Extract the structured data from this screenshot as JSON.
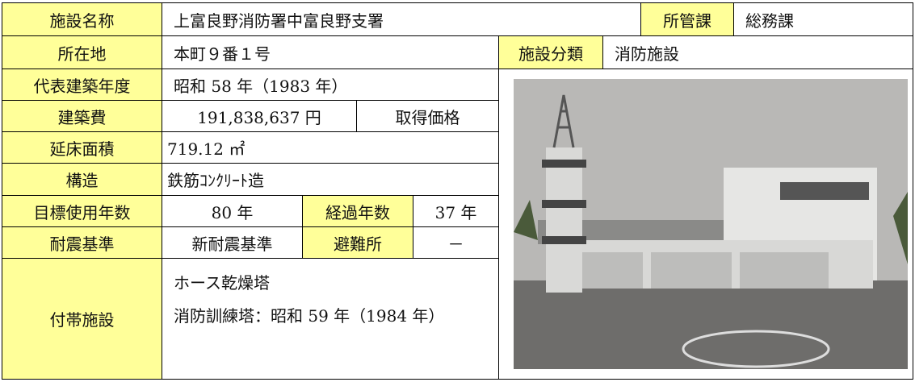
{
  "facility_name": {
    "label": "施設名称",
    "value": "上富良野消防署中富良野支署"
  },
  "department": {
    "label": "所管課",
    "value": "総務課"
  },
  "location": {
    "label": "所在地",
    "value": "本町９番１号"
  },
  "category": {
    "label": "施設分類",
    "value": "消防施設"
  },
  "built_year": {
    "label": "代表建築年度",
    "value": "昭和 58 年（1983 年）"
  },
  "construction_cost": {
    "label": "建築費",
    "value": "191,838,637 円",
    "note_label": "取得価格"
  },
  "floor_area": {
    "label": "延床面積",
    "value": "719.12 ㎡"
  },
  "structure": {
    "label": "構造",
    "value": "鉄筋ｺﾝｸﾘｰﾄ造"
  },
  "target_years": {
    "label": "目標使用年数",
    "value": "80 年"
  },
  "elapsed_years": {
    "label": "経過年数",
    "value": "37 年"
  },
  "seismic_standard": {
    "label": "耐震基準",
    "value": "新耐震基準"
  },
  "shelter": {
    "label": "避難所",
    "value": "－"
  },
  "attached_facilities": {
    "label": "付帯施設",
    "lines": [
      "ホース乾燥塔",
      "消防訓練塔：昭和 59 年（1984 年）"
    ]
  }
}
